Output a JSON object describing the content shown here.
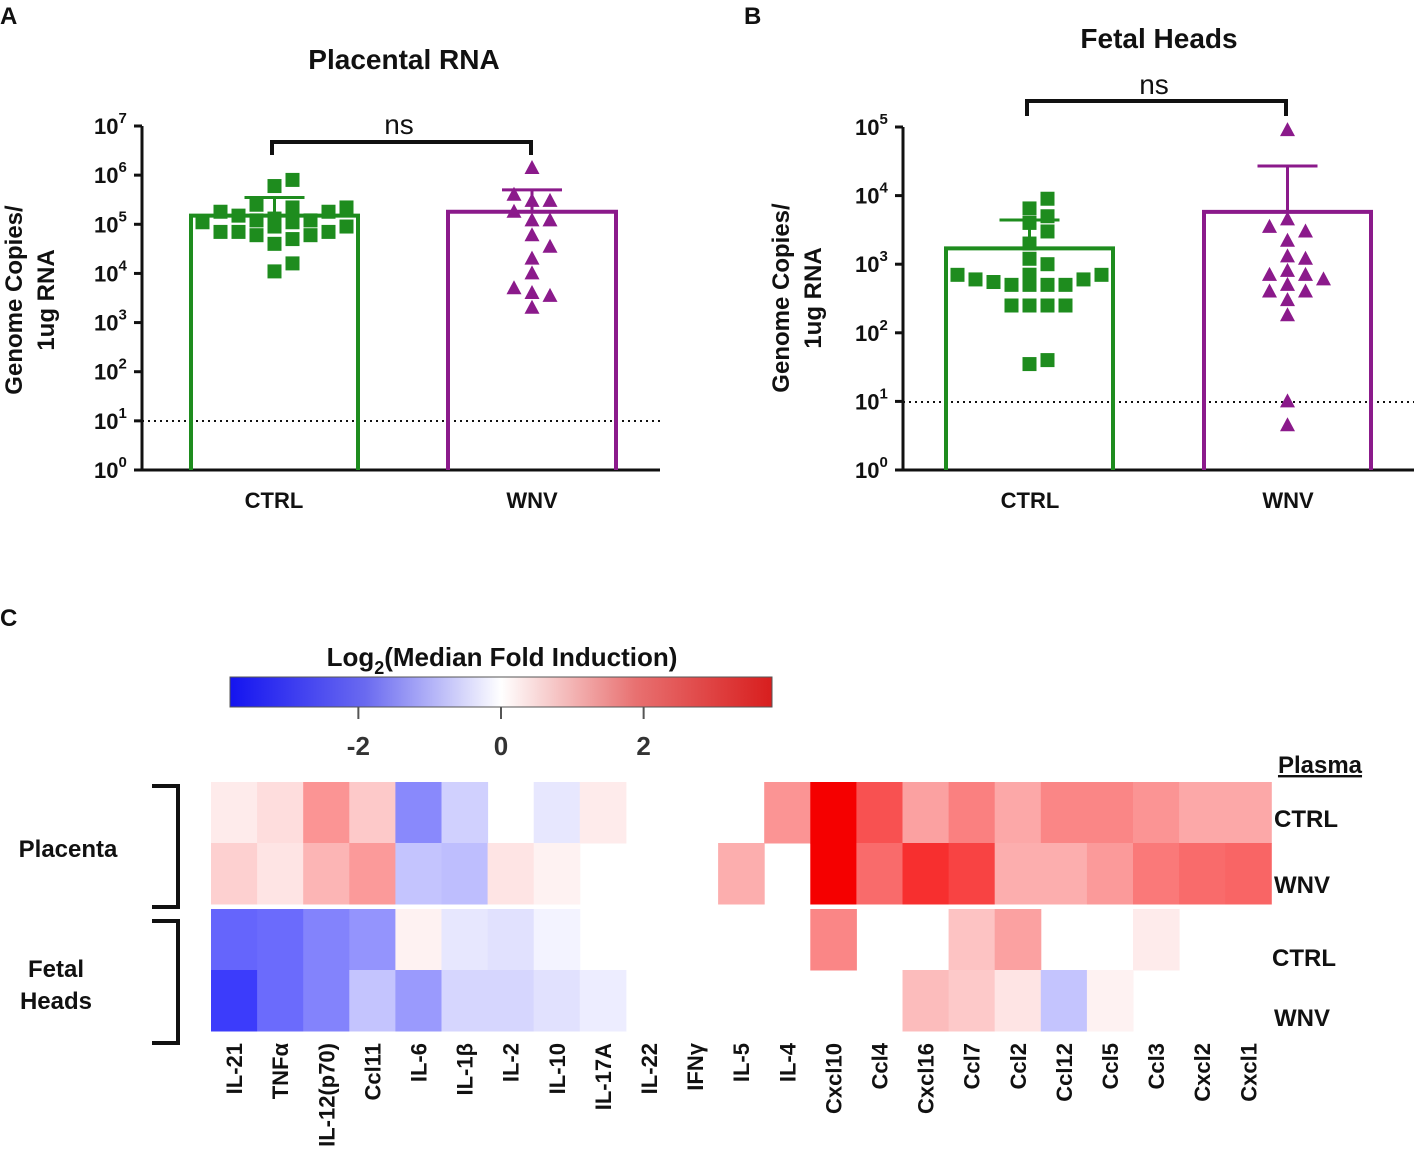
{
  "panels": {
    "a": "A",
    "b": "B",
    "c": "C"
  },
  "chart_data": [
    {
      "type": "bar",
      "panel": "A",
      "title": "Placental RNA",
      "ylabel_line1": "Genome Copies/",
      "ylabel_line2": "1ug RNA",
      "yscale": "log10",
      "ylim": [
        1,
        10000000
      ],
      "ytick_exponents": [
        "0",
        "1",
        "2",
        "3",
        "4",
        "5",
        "6",
        "7"
      ],
      "categories": [
        "CTRL",
        "WNV"
      ],
      "bar_values": [
        150000,
        180000
      ],
      "error_upper": [
        350000,
        500000
      ],
      "limit_of_detection": 10,
      "significance": "ns",
      "colors": {
        "CTRL": "#1e8c1e",
        "WNV": "#8b1a8b"
      },
      "points": {
        "CTRL": [
          70000,
          90000,
          110000,
          120000,
          130000,
          180000,
          50000,
          60000,
          220000,
          70000,
          110000,
          180000,
          150000,
          120000,
          70000,
          90000,
          250000,
          220000,
          130000,
          11000,
          16000,
          40000,
          800000,
          600000,
          60000
        ],
        "WNV": [
          1400000,
          400000,
          300000,
          180000,
          120000,
          60000,
          35000,
          20000,
          10000,
          4000,
          2000,
          5000,
          3500,
          300000,
          120000
        ]
      }
    },
    {
      "type": "bar",
      "panel": "B",
      "title": "Fetal Heads",
      "ylabel_line1": "Genome Copies/",
      "ylabel_line2": "1ug RNA",
      "yscale": "log10",
      "ylim": [
        1,
        100000
      ],
      "ytick_exponents": [
        "0",
        "1",
        "2",
        "3",
        "4",
        "5"
      ],
      "categories": [
        "CTRL",
        "WNV"
      ],
      "bar_values": [
        1700,
        5800
      ],
      "error_upper": [
        4400,
        27000
      ],
      "limit_of_detection": 10,
      "significance": "ns",
      "colors": {
        "CTRL": "#1e8c1e",
        "WNV": "#8b1a8b"
      },
      "points": {
        "CTRL": [
          700,
          550,
          700,
          600,
          500,
          500,
          600,
          700,
          250,
          250,
          250,
          250,
          500,
          500,
          5000,
          6500,
          9000,
          4000,
          3000,
          2000,
          35,
          40,
          1200,
          1000,
          700
        ],
        "WNV": [
          90000,
          4500,
          3500,
          3000,
          2200,
          1300,
          800,
          700,
          600,
          500,
          400,
          400,
          300,
          180,
          10,
          4.5,
          1200,
          700
        ]
      }
    },
    {
      "type": "heatmap",
      "panel": "C",
      "colorbar_title_main": "Log",
      "colorbar_title_sub": "2",
      "colorbar_title_rest": "(Median Fold Induction)",
      "colorbar_range": [
        -3.8,
        3.8
      ],
      "colorbar_ticks": [
        "-2",
        "0",
        "2"
      ],
      "colorbar_tick_values": [
        -2,
        0,
        2
      ],
      "column_group_header": "Plasma",
      "row_groups": [
        "Placenta",
        "Fetal",
        "Heads"
      ],
      "rows": [
        "CTRL",
        "WNV",
        "CTRL",
        "WNV"
      ],
      "columns": [
        "IL-21",
        "TNFα",
        "IL-12(p70)",
        "Ccl11",
        "IL-6",
        "IL-1β",
        "IL-2",
        "IL-10",
        "IL-17A",
        "IL-22",
        "IFNγ",
        "IL-5",
        "IL-4",
        "Cxcl10",
        "Ccl4",
        "Cxcl16",
        "Ccl7",
        "Ccl2",
        "Ccl12",
        "Ccl5",
        "Ccl3",
        "Cxcl2",
        "Cxcl1"
      ],
      "values": [
        [
          0.3,
          0.5,
          1.6,
          0.8,
          -2.0,
          -0.8,
          null,
          -0.4,
          0.3,
          null,
          null,
          null,
          1.6,
          3.8,
          2.6,
          1.4,
          1.9,
          1.3,
          1.8,
          1.8,
          1.6,
          1.3,
          1.3
        ],
        [
          0.7,
          0.4,
          1.1,
          1.5,
          -1.0,
          -1.1,
          0.4,
          0.2,
          null,
          null,
          null,
          1.2,
          null,
          3.8,
          2.2,
          3.1,
          2.8,
          1.2,
          1.2,
          1.5,
          2.0,
          2.2,
          2.3
        ],
        [
          -2.6,
          -2.5,
          -2.1,
          -1.8,
          0.2,
          -0.4,
          -0.5,
          -0.2,
          null,
          null,
          null,
          null,
          null,
          1.8,
          null,
          null,
          0.9,
          1.4,
          null,
          null,
          0.3,
          null,
          null
        ],
        [
          -3.3,
          -2.5,
          -2.1,
          -1.0,
          -1.7,
          -0.7,
          -0.7,
          -0.5,
          -0.3,
          null,
          null,
          null,
          null,
          null,
          null,
          1.0,
          0.8,
          0.4,
          -1.0,
          0.2,
          null,
          null,
          null
        ]
      ]
    }
  ]
}
